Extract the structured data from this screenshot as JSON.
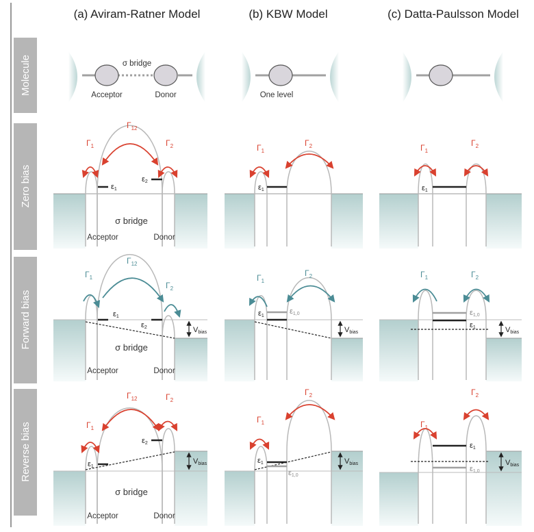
{
  "columns": [
    {
      "label": "(a) Aviram-Ratner Model"
    },
    {
      "label": "(b) KBW Model"
    },
    {
      "label": "(c) Datta-Paulsson Model"
    }
  ],
  "rows": [
    {
      "label": "Molecule"
    },
    {
      "label": "Zero bias"
    },
    {
      "label": "Forward bias"
    },
    {
      "label": "Reverse bias"
    }
  ],
  "labels": {
    "sigma_bridge": "σ bridge",
    "acceptor": "Acceptor",
    "donor": "Donor",
    "one_level": "One level",
    "gamma": "Γ",
    "gamma_1": "1",
    "gamma_2": "2",
    "gamma_12": "12",
    "epsilon": "ε",
    "eps_1": "1",
    "eps_2": "2",
    "eps_10": "1,0",
    "v": "V",
    "bias": "bias"
  },
  "colors": {
    "zero_and_reverse_arrows": "#d9412f",
    "forward_arrows": "#4b8c95",
    "electrode_fill": "#c9dcdc",
    "barrier": "#b8b8b8",
    "row_tab": "#b6b6b6",
    "molecule_body": "#d9d6dc"
  }
}
